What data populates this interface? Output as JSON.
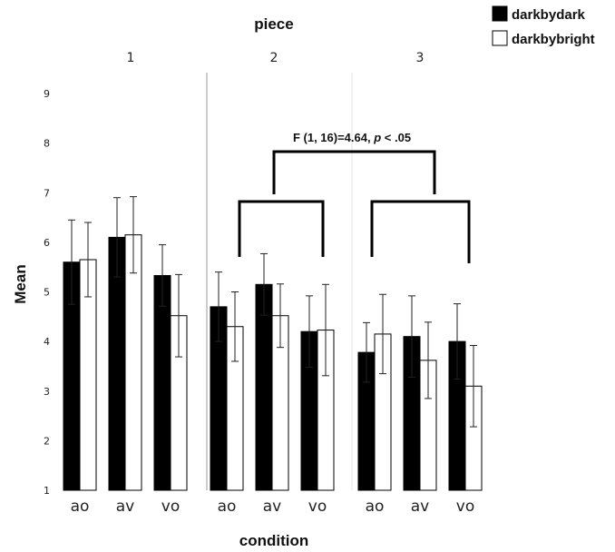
{
  "chart_data": {
    "type": "bar",
    "title": "piece",
    "xlabel": "condition",
    "ylabel": "Mean",
    "ylim": [
      1,
      9
    ],
    "yticks": [
      1,
      2,
      3,
      4,
      5,
      6,
      7,
      8,
      9
    ],
    "grid": false,
    "legend_position": "top-right",
    "panels": [
      "1",
      "2",
      "3"
    ],
    "categories": [
      "ao",
      "av",
      "vo"
    ],
    "series": [
      {
        "name": "darkbydark",
        "color": "#000000",
        "values": [
          [
            5.6,
            6.1,
            5.33
          ],
          [
            4.7,
            5.15,
            4.2
          ],
          [
            3.78,
            4.1,
            4.0
          ]
        ],
        "error": [
          [
            0.85,
            0.8,
            0.62
          ],
          [
            0.7,
            0.62,
            0.72
          ],
          [
            0.6,
            0.82,
            0.76
          ]
        ]
      },
      {
        "name": "darkbybright",
        "color": "#ffffff",
        "values": [
          [
            5.65,
            6.15,
            4.52
          ],
          [
            4.3,
            4.52,
            4.23
          ],
          [
            4.15,
            3.62,
            3.1
          ]
        ],
        "error": [
          [
            0.75,
            0.77,
            0.83
          ],
          [
            0.7,
            0.64,
            0.92
          ],
          [
            0.8,
            0.77,
            0.82
          ]
        ]
      }
    ],
    "annotation": {
      "label_plain": "F (1, 16)=4.64, ",
      "label_italic": "p",
      "label_tail": " < .05"
    }
  }
}
